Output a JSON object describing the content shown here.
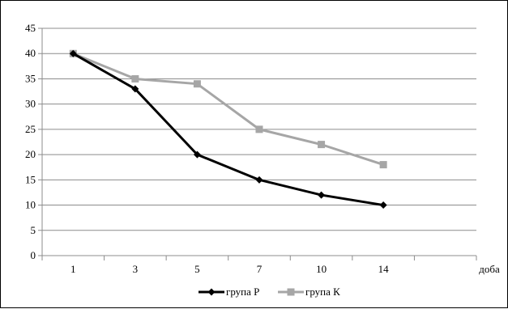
{
  "chart_data": {
    "type": "line",
    "title": "",
    "xlabel": "доба",
    "ylabel": "",
    "categories": [
      "1",
      "3",
      "5",
      "7",
      "10",
      "14"
    ],
    "ylim": [
      0,
      45
    ],
    "yticks": [
      0,
      5,
      10,
      15,
      20,
      25,
      30,
      35,
      40,
      45
    ],
    "grid": true,
    "legend_position": "bottom",
    "series": [
      {
        "name": "група Р",
        "values": [
          40,
          33,
          20,
          15,
          12,
          10
        ],
        "color": "#000000",
        "marker": "diamond"
      },
      {
        "name": "група К",
        "values": [
          40,
          35,
          34,
          25,
          22,
          18
        ],
        "color": "#a6a6a6",
        "marker": "square"
      }
    ]
  }
}
